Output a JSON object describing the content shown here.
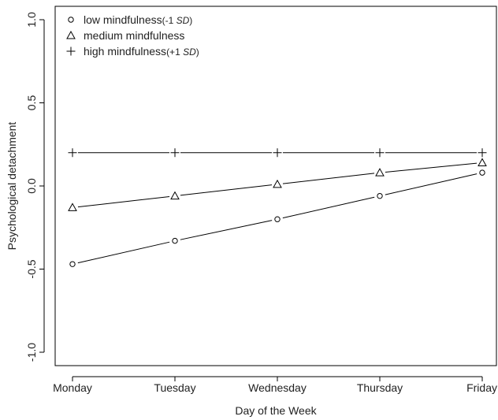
{
  "chart_data": {
    "type": "line",
    "xlabel": "Day of the Week",
    "ylabel": "Psychological detachment",
    "categories": [
      "Monday",
      "Tuesday",
      "Wednesday",
      "Thursday",
      "Friday"
    ],
    "ylim": [
      -1.0,
      1.0
    ],
    "yticks": [
      -1.0,
      -0.5,
      0.0,
      0.5,
      1.0
    ],
    "ytick_labels": [
      "-1.0",
      "-0.5",
      "0.0",
      "0.5",
      "1.0"
    ],
    "grid": false,
    "legend_position": "top-left",
    "series": [
      {
        "name_main": "low mindfulness",
        "name_paren_open": "(-1 ",
        "name_sd": "SD",
        "name_paren_close": ")",
        "marker": "circle",
        "values": [
          -0.47,
          -0.33,
          -0.2,
          -0.06,
          0.08
        ]
      },
      {
        "name_main": "medium mindfulness",
        "marker": "triangle",
        "values": [
          -0.13,
          -0.06,
          0.01,
          0.08,
          0.14
        ]
      },
      {
        "name_main": "high mindfulness",
        "name_paren_open": "(+1 ",
        "name_sd": "SD",
        "name_paren_close": ")",
        "marker": "plus",
        "values": [
          0.2,
          0.2,
          0.2,
          0.2,
          0.2
        ]
      }
    ]
  }
}
